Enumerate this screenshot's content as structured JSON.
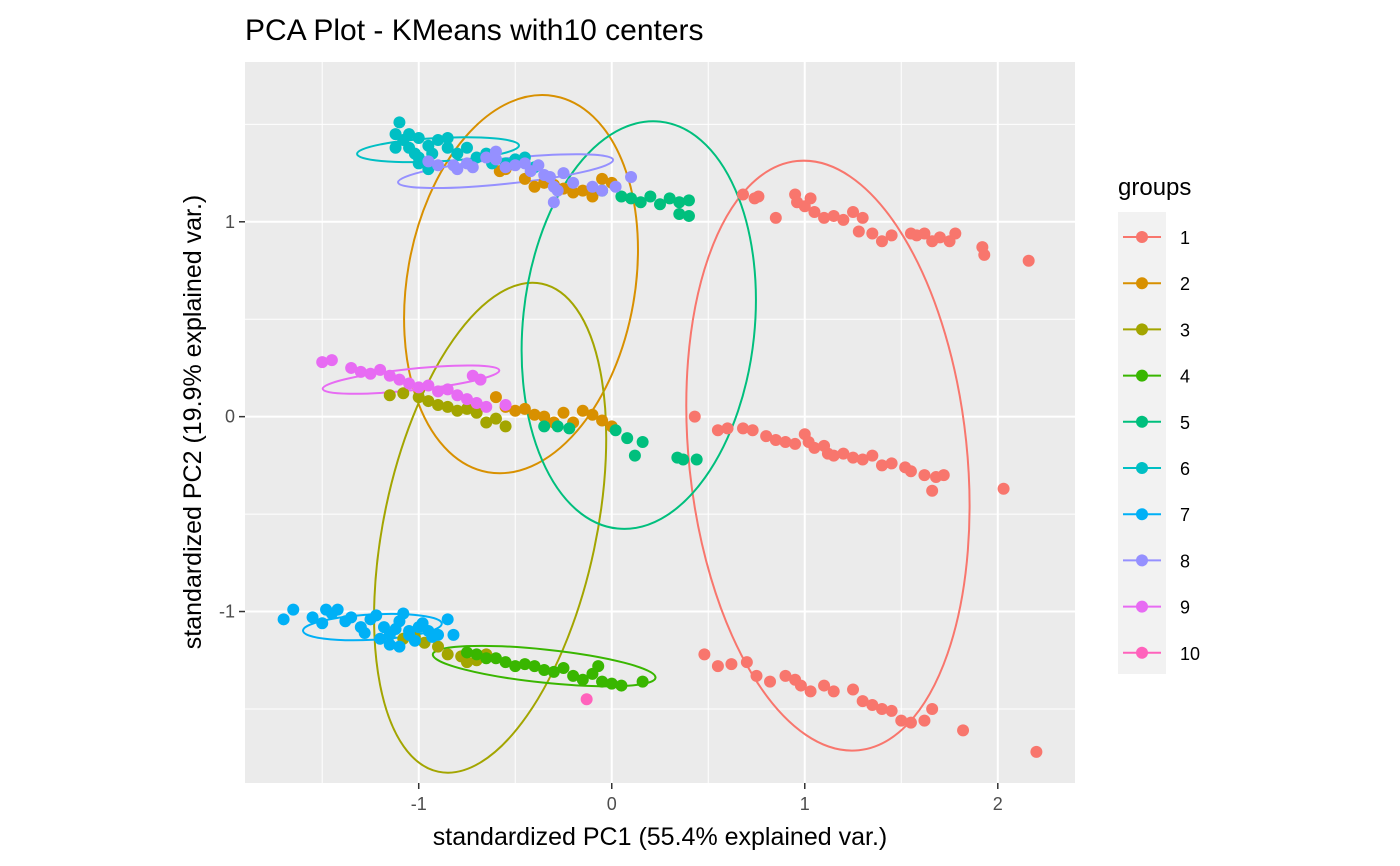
{
  "chart_data": {
    "type": "scatter",
    "title": "PCA Plot - KMeans with10 centers",
    "xlabel": "standardized PC1 (55.4% explained var.)",
    "ylabel": "standardized PC2 (19.9% explained var.)",
    "xlim": [
      -1.9,
      2.4
    ],
    "ylim": [
      -1.88,
      1.82
    ],
    "xticks": [
      -1,
      0,
      1,
      2
    ],
    "yticks": [
      -1,
      0,
      1
    ],
    "xtick_labels": [
      "-1",
      "0",
      "1",
      "2"
    ],
    "ytick_labels": [
      "-1",
      "0",
      "1"
    ],
    "grid": true,
    "legend": {
      "title": "groups",
      "position": "right"
    },
    "series": [
      {
        "name": "1",
        "color": "#F8766D",
        "ellipse": {
          "cx": 1.12,
          "cy": -0.2,
          "rx": 0.72,
          "ry": 1.52,
          "angle": -6
        },
        "points": [
          [
            0.68,
            1.14
          ],
          [
            0.74,
            1.12
          ],
          [
            0.76,
            1.13
          ],
          [
            0.85,
            1.02
          ],
          [
            0.95,
            1.14
          ],
          [
            0.96,
            1.1
          ],
          [
            1.0,
            1.08
          ],
          [
            1.03,
            1.12
          ],
          [
            1.05,
            1.05
          ],
          [
            1.1,
            1.02
          ],
          [
            1.15,
            1.03
          ],
          [
            1.2,
            1.01
          ],
          [
            1.25,
            1.05
          ],
          [
            1.3,
            1.02
          ],
          [
            1.28,
            0.95
          ],
          [
            1.35,
            0.94
          ],
          [
            1.4,
            0.9
          ],
          [
            1.45,
            0.93
          ],
          [
            1.55,
            0.94
          ],
          [
            1.58,
            0.93
          ],
          [
            1.62,
            0.94
          ],
          [
            1.66,
            0.9
          ],
          [
            1.7,
            0.92
          ],
          [
            1.75,
            0.9
          ],
          [
            1.78,
            0.94
          ],
          [
            1.92,
            0.87
          ],
          [
            1.93,
            0.83
          ],
          [
            2.16,
            0.8
          ],
          [
            0.43,
            0.0
          ],
          [
            0.55,
            -0.07
          ],
          [
            0.6,
            -0.06
          ],
          [
            0.68,
            -0.06
          ],
          [
            0.73,
            -0.07
          ],
          [
            0.8,
            -0.1
          ],
          [
            0.85,
            -0.12
          ],
          [
            0.9,
            -0.13
          ],
          [
            0.95,
            -0.14
          ],
          [
            1.0,
            -0.09
          ],
          [
            1.02,
            -0.13
          ],
          [
            1.05,
            -0.16
          ],
          [
            1.1,
            -0.15
          ],
          [
            1.12,
            -0.19
          ],
          [
            1.15,
            -0.2
          ],
          [
            1.2,
            -0.19
          ],
          [
            1.25,
            -0.21
          ],
          [
            1.3,
            -0.22
          ],
          [
            1.35,
            -0.2
          ],
          [
            1.4,
            -0.25
          ],
          [
            1.45,
            -0.24
          ],
          [
            1.52,
            -0.26
          ],
          [
            1.55,
            -0.28
          ],
          [
            1.62,
            -0.3
          ],
          [
            1.68,
            -0.31
          ],
          [
            1.72,
            -0.3
          ],
          [
            1.66,
            -0.38
          ],
          [
            2.03,
            -0.37
          ],
          [
            0.48,
            -1.22
          ],
          [
            0.55,
            -1.28
          ],
          [
            0.62,
            -1.27
          ],
          [
            0.7,
            -1.26
          ],
          [
            0.75,
            -1.33
          ],
          [
            0.82,
            -1.36
          ],
          [
            0.9,
            -1.33
          ],
          [
            0.95,
            -1.35
          ],
          [
            0.98,
            -1.38
          ],
          [
            1.03,
            -1.41
          ],
          [
            1.1,
            -1.38
          ],
          [
            1.15,
            -1.41
          ],
          [
            1.25,
            -1.4
          ],
          [
            1.3,
            -1.46
          ],
          [
            1.35,
            -1.48
          ],
          [
            1.4,
            -1.5
          ],
          [
            1.45,
            -1.51
          ],
          [
            1.5,
            -1.56
          ],
          [
            1.55,
            -1.57
          ],
          [
            1.62,
            -1.56
          ],
          [
            1.66,
            -1.5
          ],
          [
            1.82,
            -1.61
          ],
          [
            2.2,
            -1.72
          ]
        ]
      },
      {
        "name": "2",
        "color": "#D89000",
        "ellipse": {
          "cx": -0.47,
          "cy": 0.68,
          "rx": 0.59,
          "ry": 0.98,
          "angle": 10
        },
        "points": [
          [
            -0.58,
            1.26
          ],
          [
            -0.55,
            1.27
          ],
          [
            -0.45,
            1.22
          ],
          [
            -0.4,
            1.18
          ],
          [
            -0.35,
            1.2
          ],
          [
            -0.3,
            1.19
          ],
          [
            -0.25,
            1.17
          ],
          [
            -0.2,
            1.15
          ],
          [
            -0.15,
            1.16
          ],
          [
            -0.1,
            1.13
          ],
          [
            -0.05,
            1.22
          ],
          [
            0.0,
            1.2
          ],
          [
            -0.6,
            0.1
          ],
          [
            -0.55,
            0.05
          ],
          [
            -0.5,
            0.03
          ],
          [
            -0.45,
            0.04
          ],
          [
            -0.4,
            0.01
          ],
          [
            -0.35,
            0.0
          ],
          [
            -0.3,
            -0.03
          ],
          [
            -0.25,
            0.02
          ],
          [
            -0.2,
            -0.03
          ],
          [
            -0.15,
            0.03
          ],
          [
            -0.1,
            0.01
          ],
          [
            -0.05,
            -0.02
          ],
          [
            0.0,
            -0.05
          ]
        ]
      },
      {
        "name": "3",
        "color": "#A3A500",
        "ellipse": {
          "cx": -0.63,
          "cy": -0.57,
          "rx": 0.55,
          "ry": 1.28,
          "angle": 12
        },
        "points": [
          [
            -1.15,
            0.11
          ],
          [
            -1.08,
            0.12
          ],
          [
            -1.0,
            0.1
          ],
          [
            -0.95,
            0.08
          ],
          [
            -0.9,
            0.06
          ],
          [
            -0.85,
            0.05
          ],
          [
            -0.8,
            0.03
          ],
          [
            -0.75,
            0.04
          ],
          [
            -0.7,
            0.02
          ],
          [
            -0.65,
            -0.03
          ],
          [
            -0.6,
            -0.01
          ],
          [
            -0.55,
            -0.05
          ],
          [
            -1.08,
            -1.14
          ],
          [
            -1.02,
            -1.13
          ],
          [
            -0.97,
            -1.16
          ],
          [
            -0.9,
            -1.18
          ],
          [
            -0.85,
            -1.22
          ],
          [
            -0.78,
            -1.23
          ],
          [
            -0.75,
            -1.26
          ],
          [
            -0.7,
            -1.25
          ],
          [
            -0.65,
            -1.22
          ]
        ]
      },
      {
        "name": "4",
        "color": "#39B600",
        "ellipse": {
          "cx": -0.35,
          "cy": -1.28,
          "rx": 0.58,
          "ry": 0.085,
          "angle": 6
        },
        "points": [
          [
            -0.75,
            -1.21
          ],
          [
            -0.7,
            -1.22
          ],
          [
            -0.65,
            -1.24
          ],
          [
            -0.6,
            -1.24
          ],
          [
            -0.55,
            -1.26
          ],
          [
            -0.5,
            -1.28
          ],
          [
            -0.45,
            -1.27
          ],
          [
            -0.4,
            -1.28
          ],
          [
            -0.35,
            -1.3
          ],
          [
            -0.3,
            -1.31
          ],
          [
            -0.25,
            -1.29
          ],
          [
            -0.2,
            -1.33
          ],
          [
            -0.15,
            -1.35
          ],
          [
            -0.1,
            -1.32
          ],
          [
            -0.05,
            -1.36
          ],
          [
            0.0,
            -1.37
          ],
          [
            0.05,
            -1.38
          ],
          [
            0.16,
            -1.36
          ],
          [
            -0.07,
            -1.28
          ]
        ]
      },
      {
        "name": "5",
        "color": "#00BF7D",
        "ellipse": {
          "cx": 0.14,
          "cy": 0.47,
          "rx": 0.6,
          "ry": 1.05,
          "angle": 6
        },
        "points": [
          [
            -0.05,
            1.16
          ],
          [
            0.05,
            1.13
          ],
          [
            0.1,
            1.12
          ],
          [
            0.15,
            1.1
          ],
          [
            0.2,
            1.13
          ],
          [
            0.25,
            1.09
          ],
          [
            0.3,
            1.12
          ],
          [
            0.35,
            1.1
          ],
          [
            0.35,
            1.04
          ],
          [
            0.4,
            1.03
          ],
          [
            0.4,
            1.11
          ],
          [
            -0.35,
            -0.05
          ],
          [
            -0.28,
            -0.05
          ],
          [
            -0.22,
            -0.06
          ],
          [
            0.02,
            -0.07
          ],
          [
            0.08,
            -0.11
          ],
          [
            0.12,
            -0.2
          ],
          [
            0.16,
            -0.13
          ],
          [
            0.34,
            -0.21
          ],
          [
            0.37,
            -0.22
          ],
          [
            0.44,
            -0.22
          ]
        ]
      },
      {
        "name": "6",
        "color": "#00BFC4",
        "ellipse": {
          "cx": -0.9,
          "cy": 1.37,
          "rx": 0.42,
          "ry": 0.06,
          "angle": -3
        },
        "points": [
          [
            -1.12,
            1.38
          ],
          [
            -1.12,
            1.45
          ],
          [
            -1.08,
            1.42
          ],
          [
            -1.05,
            1.38
          ],
          [
            -1.0,
            1.43
          ],
          [
            -0.95,
            1.39
          ],
          [
            -0.9,
            1.42
          ],
          [
            -0.85,
            1.38
          ],
          [
            -0.8,
            1.35
          ],
          [
            -0.75,
            1.38
          ],
          [
            -0.7,
            1.33
          ],
          [
            -0.65,
            1.35
          ],
          [
            -0.6,
            1.32
          ],
          [
            -0.55,
            1.3
          ],
          [
            -0.5,
            1.32
          ],
          [
            -1.0,
            1.3
          ],
          [
            -1.0,
            1.33
          ],
          [
            -0.95,
            1.27
          ],
          [
            -0.93,
            1.35
          ],
          [
            -1.02,
            1.35
          ],
          [
            -1.1,
            1.51
          ],
          [
            -1.05,
            1.45
          ],
          [
            -0.85,
            1.43
          ],
          [
            -0.62,
            1.3
          ],
          [
            -0.45,
            1.33
          ],
          [
            -0.4,
            1.28
          ]
        ]
      },
      {
        "name": "7",
        "color": "#00B0F6",
        "ellipse": {
          "cx": -1.24,
          "cy": -1.08,
          "rx": 0.36,
          "ry": 0.065,
          "angle": -3
        },
        "points": [
          [
            -1.7,
            -1.04
          ],
          [
            -1.65,
            -0.99
          ],
          [
            -1.5,
            -1.06
          ],
          [
            -1.48,
            -0.99
          ],
          [
            -1.45,
            -1.01
          ],
          [
            -1.42,
            -0.99
          ],
          [
            -1.38,
            -1.05
          ],
          [
            -1.35,
            -1.03
          ],
          [
            -1.3,
            -1.08
          ],
          [
            -1.28,
            -1.11
          ],
          [
            -1.25,
            -1.04
          ],
          [
            -1.22,
            -1.02
          ],
          [
            -1.18,
            -1.08
          ],
          [
            -1.15,
            -1.12
          ],
          [
            -1.12,
            -1.09
          ],
          [
            -1.1,
            -1.05
          ],
          [
            -1.08,
            -1.01
          ],
          [
            -1.05,
            -1.12
          ],
          [
            -1.02,
            -1.15
          ],
          [
            -1.0,
            -1.08
          ],
          [
            -0.98,
            -1.06
          ],
          [
            -0.95,
            -1.1
          ],
          [
            -0.93,
            -1.13
          ],
          [
            -0.9,
            -1.12
          ],
          [
            -0.85,
            -1.04
          ],
          [
            -0.82,
            -1.12
          ],
          [
            -1.2,
            -1.14
          ],
          [
            -1.15,
            -1.17
          ],
          [
            -1.1,
            -1.18
          ],
          [
            -1.05,
            -1.1
          ],
          [
            -1.55,
            -1.03
          ]
        ]
      },
      {
        "name": "8",
        "color": "#9590FF",
        "ellipse": {
          "cx": -0.55,
          "cy": 1.26,
          "rx": 0.56,
          "ry": 0.065,
          "angle": -6
        },
        "points": [
          [
            -0.95,
            1.31
          ],
          [
            -0.9,
            1.29
          ],
          [
            -0.8,
            1.27
          ],
          [
            -0.75,
            1.3
          ],
          [
            -0.72,
            1.28
          ],
          [
            -0.65,
            1.33
          ],
          [
            -0.6,
            1.32
          ],
          [
            -0.55,
            1.28
          ],
          [
            -0.5,
            1.29
          ],
          [
            -0.45,
            1.3
          ],
          [
            -0.42,
            1.26
          ],
          [
            -0.38,
            1.29
          ],
          [
            -0.35,
            1.24
          ],
          [
            -0.32,
            1.23
          ],
          [
            -0.3,
            1.18
          ],
          [
            -0.3,
            1.1
          ],
          [
            -0.25,
            1.25
          ],
          [
            -0.2,
            1.2
          ],
          [
            -0.1,
            1.18
          ],
          [
            -0.05,
            1.16
          ],
          [
            0.02,
            1.18
          ],
          [
            0.1,
            1.23
          ],
          [
            -0.28,
            1.16
          ],
          [
            -0.82,
            1.29
          ],
          [
            -0.6,
            1.36
          ]
        ]
      },
      {
        "name": "9",
        "color": "#E76BF3",
        "ellipse": {
          "cx": -1.04,
          "cy": 0.19,
          "rx": 0.46,
          "ry": 0.055,
          "angle": -6
        },
        "points": [
          [
            -1.5,
            0.28
          ],
          [
            -1.45,
            0.29
          ],
          [
            -1.35,
            0.25
          ],
          [
            -1.3,
            0.23
          ],
          [
            -1.25,
            0.22
          ],
          [
            -1.2,
            0.24
          ],
          [
            -1.15,
            0.21
          ],
          [
            -1.1,
            0.19
          ],
          [
            -1.05,
            0.17
          ],
          [
            -1.0,
            0.15
          ],
          [
            -0.95,
            0.16
          ],
          [
            -0.9,
            0.13
          ],
          [
            -0.85,
            0.14
          ],
          [
            -0.8,
            0.11
          ],
          [
            -0.75,
            0.09
          ],
          [
            -0.7,
            0.07
          ],
          [
            -0.65,
            0.05
          ],
          [
            -0.72,
            0.21
          ],
          [
            -0.68,
            0.19
          ],
          [
            -0.55,
            0.06
          ]
        ]
      },
      {
        "name": "10",
        "color": "#FF62BC",
        "ellipse": null,
        "points": [
          [
            -0.13,
            -1.45
          ]
        ]
      }
    ]
  }
}
